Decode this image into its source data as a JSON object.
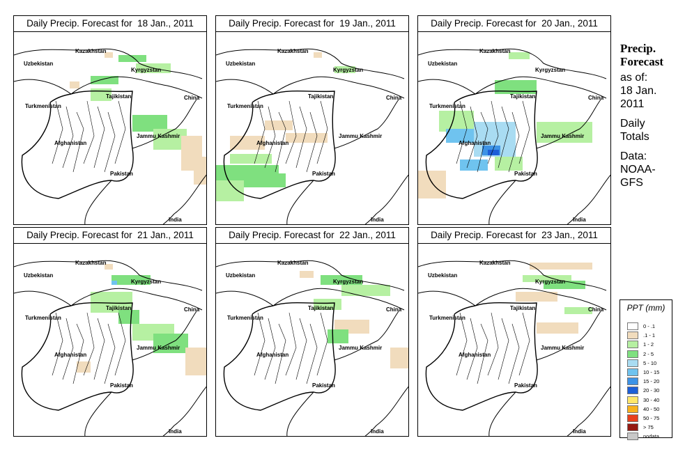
{
  "panels": [
    {
      "title": "Daily Precip. Forecast for  18 Jan., 2011",
      "day": "18"
    },
    {
      "title": "Daily Precip. Forecast for  19 Jan., 2011",
      "day": "19"
    },
    {
      "title": "Daily Precip. Forecast for  20 Jan., 2011",
      "day": "20"
    },
    {
      "title": "Daily Precip. Forecast for  21 Jan., 2011",
      "day": "21"
    },
    {
      "title": "Daily Precip. Forecast for  22 Jan., 2011",
      "day": "22"
    },
    {
      "title": "Daily Precip. Forecast for  23 Jan., 2011",
      "day": "23"
    }
  ],
  "map_labels": {
    "kazakhstan": "Kazakhstan",
    "uzbekistan": "Uzbekistan",
    "kyrgyzstan": "Kyrgyzstan",
    "tajikistan": "Tajikistan",
    "turkmenistan": "Turkmenistan",
    "china": "China",
    "jammu_kashmir": "Jammu Kashmir",
    "afghanistan": "Afghanistan",
    "pakistan": "Pakistan",
    "india": "India"
  },
  "side_info": {
    "title_line1": "Precip.",
    "title_line2": "Forecast",
    "asof": "as of:",
    "date_line1": "18 Jan.",
    "date_line2": "2011",
    "daily_line1": "Daily",
    "daily_line2": "Totals",
    "data_line1": "Data:",
    "data_line2": "NOAA-",
    "data_line3": "GFS"
  },
  "legend": {
    "title": "PPT (mm)",
    "items": [
      {
        "label": "0 - .1",
        "color": "#ffffff"
      },
      {
        "label": ".1 - 1",
        "color": "#f1dcbd"
      },
      {
        "label": "1 - 2",
        "color": "#b6f0a2"
      },
      {
        "label": "2 - 5",
        "color": "#7fe07f"
      },
      {
        "label": "5 - 10",
        "color": "#a9dcf2"
      },
      {
        "label": "10 - 15",
        "color": "#6fc3ef"
      },
      {
        "label": "15 - 20",
        "color": "#3d93e6"
      },
      {
        "label": "20 - 30",
        "color": "#1d5fd8"
      },
      {
        "label": "30 - 40",
        "color": "#ffe76b"
      },
      {
        "label": "40 - 50",
        "color": "#f8b21e"
      },
      {
        "label": "50 - 75",
        "color": "#e8401c"
      },
      {
        "label": "> 75",
        "color": "#951a12"
      },
      {
        "label": "nodata",
        "color": "#c8c8c8"
      }
    ]
  }
}
